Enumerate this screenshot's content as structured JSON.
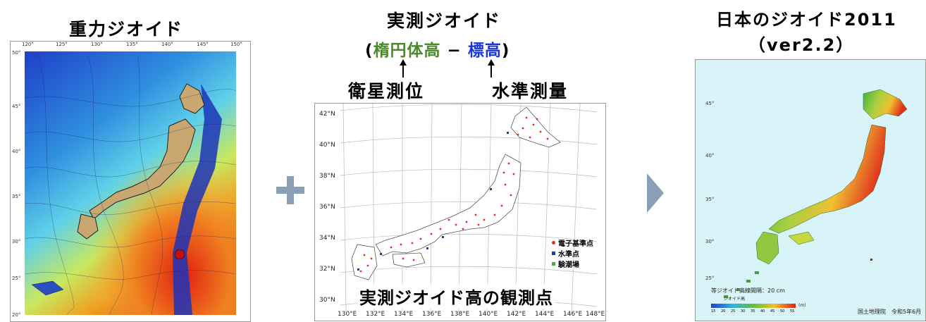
{
  "left_panel": {
    "title": "重力ジオイド",
    "lon_labels": [
      "120°",
      "125°",
      "130°",
      "135°",
      "140°",
      "145°",
      "150°"
    ],
    "lat_labels": [
      "50°",
      "45°",
      "40°",
      "35°",
      "30°",
      "25°",
      "20°"
    ]
  },
  "plus_symbol": {
    "color": "#8a9fb5"
  },
  "middle_panel": {
    "title": "実測ジオイド",
    "formula_open": "(",
    "formula_ellipsoid": "楕円体高",
    "formula_minus": " − ",
    "formula_orthometric": "標高",
    "formula_close": ")",
    "label_left": "衛星測位",
    "label_right": "水準測量",
    "caption": "実測ジオイド高の観測点",
    "lat_labels": [
      "42°N",
      "40°N",
      "38°N",
      "36°N",
      "34°N",
      "32°N",
      "30°N"
    ],
    "lon_labels": [
      "130°E",
      "132°E",
      "134°E",
      "136°E",
      "138°E",
      "140°E",
      "142°E",
      "144°E",
      "146°E",
      "148°E"
    ],
    "legend": [
      {
        "label": "電子基準点",
        "color": "#e03020"
      },
      {
        "label": "水準点",
        "color": "#1a3ac0"
      },
      {
        "label": "験潮場",
        "color": "#40b040"
      }
    ]
  },
  "arrow": {
    "color": "#8a9fb5"
  },
  "right_panel": {
    "title_line1": "日本のジオイド2011",
    "title_line2": "（ver2.2）",
    "lat_labels": [
      "45°",
      "40°",
      "35°",
      "30°",
      "25°"
    ],
    "contour_note": "等ジオイド高線間隔：20 cm",
    "scale_title": "ジオイド高",
    "scale_ticks": [
      "15",
      "20",
      "25",
      "30",
      "35",
      "40",
      "45",
      "50",
      "55"
    ],
    "scale_unit": "(m)",
    "credit": "国土地理院　令和5年6月"
  }
}
